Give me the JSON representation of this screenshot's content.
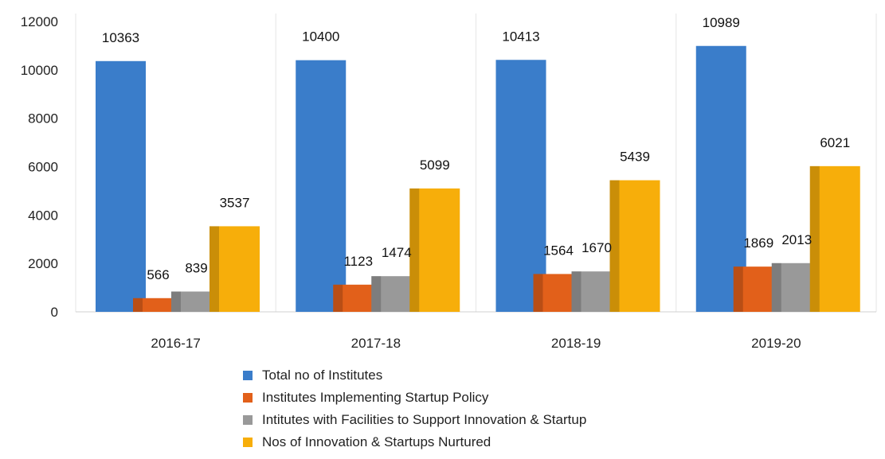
{
  "chart_data": {
    "type": "bar",
    "categories": [
      "2016-17",
      "2017-18",
      "2018-19",
      "2019-20"
    ],
    "series": [
      {
        "name": "Total no of Institutes",
        "color": "#3A7DCA",
        "values": [
          10363,
          10400,
          10413,
          10989
        ]
      },
      {
        "name": "Institutes  Implementing  Startup Policy",
        "color": "#E2601A",
        "values": [
          566,
          1123,
          1564,
          1869
        ]
      },
      {
        "name": "Intitutes  with Facilities  to Support Innovation & Startup",
        "color": "#999999",
        "values": [
          839,
          1474,
          1670,
          2013
        ]
      },
      {
        "name": "Nos of Innovation & Startups Nurtured",
        "color": "#F7AE0A",
        "values": [
          3537,
          5099,
          5439,
          6021
        ]
      }
    ],
    "y_ticks": [
      "0",
      "2000",
      "4000",
      "6000",
      "8000",
      "10000",
      "12000"
    ],
    "ylim": [
      0,
      12000
    ],
    "title": "",
    "xlabel": "",
    "ylabel": "",
    "grid": "vertical category separators",
    "legend_position": "bottom"
  }
}
